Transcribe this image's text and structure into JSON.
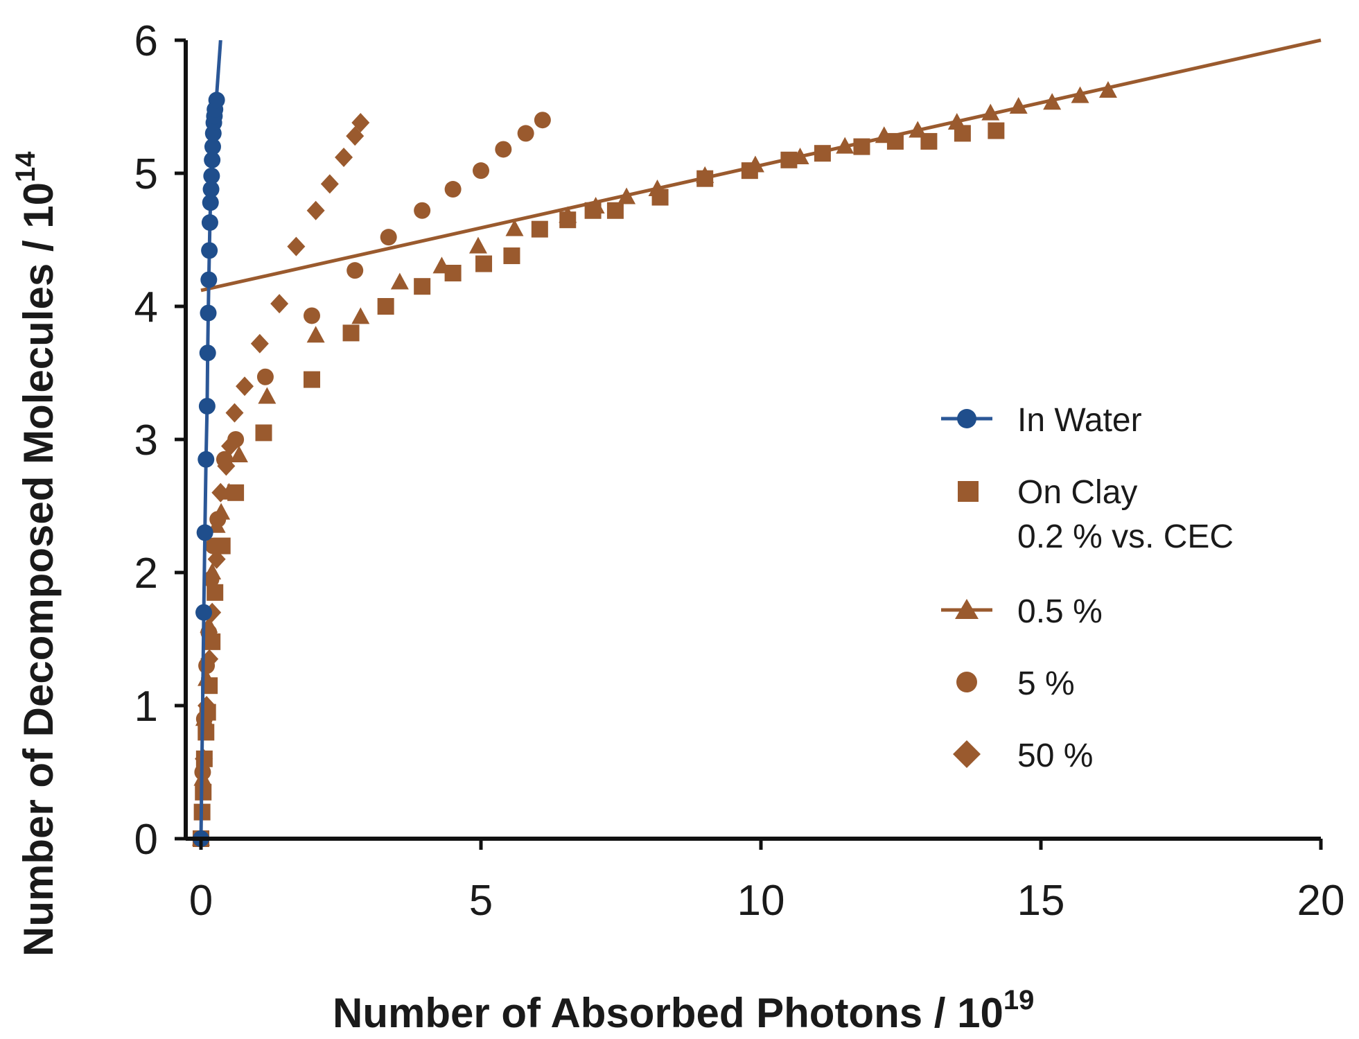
{
  "chart_data": {
    "type": "scatter",
    "title": "",
    "xlabel": "Number of Absorbed Photons / 10",
    "xlabel_sup": "19",
    "ylabel": "Number of Decomposed Molecules / 10",
    "ylabel_sup": "14",
    "xlim": [
      0,
      20
    ],
    "ylim": [
      0,
      6
    ],
    "xticks": [
      0,
      5,
      10,
      15,
      20
    ],
    "yticks": [
      0,
      1,
      2,
      3,
      4,
      5,
      6
    ],
    "grid": false,
    "legend_position": "right",
    "colors": {
      "water": "#1f4e8c",
      "water_line": "#2b5797",
      "clay": "#9a5a2e",
      "axis": "#111111"
    },
    "series": [
      {
        "name": "In Water",
        "marker": "circle",
        "line": true,
        "x": [
          0.0,
          0.05,
          0.07,
          0.09,
          0.11,
          0.12,
          0.13,
          0.14,
          0.15,
          0.16,
          0.17,
          0.18,
          0.19,
          0.2,
          0.21,
          0.22,
          0.23,
          0.24,
          0.25,
          0.28
        ],
        "y": [
          0.0,
          1.7,
          2.3,
          2.85,
          3.25,
          3.65,
          3.95,
          4.2,
          4.42,
          4.63,
          4.78,
          4.88,
          4.98,
          5.1,
          5.2,
          5.3,
          5.38,
          5.43,
          5.48,
          5.55
        ]
      },
      {
        "name": "On Clay 0.2 % vs. CEC",
        "legend_line2": "0.2 % vs. CEC",
        "legend_line1": "On Clay",
        "marker": "square",
        "line": false,
        "x": [
          0.0,
          0.02,
          0.04,
          0.06,
          0.09,
          0.12,
          0.15,
          0.2,
          0.25,
          0.38,
          0.62,
          1.12,
          1.98,
          2.68,
          3.3,
          3.95,
          4.5,
          5.05,
          5.55,
          6.05,
          6.55,
          7.0,
          7.4,
          8.2,
          9.0,
          9.8,
          10.5,
          11.1,
          11.8,
          12.4,
          13.0,
          13.6,
          14.2
        ],
        "y": [
          0.0,
          0.2,
          0.35,
          0.6,
          0.8,
          0.95,
          1.15,
          1.48,
          1.85,
          2.2,
          2.6,
          3.05,
          3.45,
          3.8,
          4.0,
          4.15,
          4.25,
          4.32,
          4.38,
          4.58,
          4.65,
          4.72,
          4.72,
          4.82,
          4.96,
          5.02,
          5.1,
          5.15,
          5.2,
          5.24,
          5.24,
          5.3,
          5.32
        ]
      },
      {
        "name": "0.5 %",
        "marker": "triangle",
        "line": true,
        "fit_line": {
          "x": [
            0,
            20
          ],
          "y": [
            4.12,
            6.0
          ]
        },
        "x": [
          0.0,
          0.03,
          0.06,
          0.1,
          0.14,
          0.2,
          0.28,
          0.36,
          0.5,
          0.68,
          1.18,
          2.05,
          2.85,
          3.55,
          4.3,
          4.95,
          5.6,
          6.55,
          7.05,
          7.6,
          8.15,
          9.0,
          9.9,
          10.7,
          11.5,
          12.2,
          12.8,
          13.5,
          14.1,
          14.6,
          15.2,
          15.7,
          16.2
        ],
        "y": [
          0.0,
          0.45,
          0.9,
          1.2,
          1.6,
          2.0,
          2.35,
          2.45,
          2.6,
          2.88,
          3.32,
          3.78,
          3.92,
          4.18,
          4.3,
          4.45,
          4.58,
          4.68,
          4.75,
          4.82,
          4.88,
          4.98,
          5.06,
          5.12,
          5.2,
          5.28,
          5.32,
          5.38,
          5.45,
          5.5,
          5.53,
          5.58,
          5.62
        ]
      },
      {
        "name": "5 %",
        "marker": "circle",
        "line": false,
        "x": [
          0.0,
          0.03,
          0.06,
          0.1,
          0.14,
          0.18,
          0.22,
          0.3,
          0.42,
          0.62,
          1.15,
          1.98,
          2.75,
          3.35,
          3.95,
          4.5,
          5.0,
          5.4,
          5.8,
          6.1
        ],
        "y": [
          0.0,
          0.5,
          0.9,
          1.3,
          1.55,
          1.95,
          2.2,
          2.4,
          2.85,
          3.0,
          3.47,
          3.93,
          4.27,
          4.52,
          4.72,
          4.88,
          5.02,
          5.18,
          5.3,
          5.4
        ]
      },
      {
        "name": "50 %",
        "marker": "diamond",
        "line": false,
        "x": [
          0.0,
          0.05,
          0.1,
          0.15,
          0.2,
          0.28,
          0.35,
          0.45,
          0.52,
          0.6,
          0.78,
          1.05,
          1.4,
          1.7,
          2.05,
          2.3,
          2.55,
          2.75
        ],
        "y": [
          0.0,
          0.6,
          1.0,
          1.35,
          1.7,
          2.1,
          2.6,
          2.8,
          2.95,
          3.2,
          3.4,
          3.72,
          4.02,
          4.45,
          4.72,
          4.92,
          5.12,
          5.28
        ]
      }
    ],
    "extra_points_50": {
      "x": [
        2.85
      ],
      "y": [
        5.38
      ]
    }
  }
}
